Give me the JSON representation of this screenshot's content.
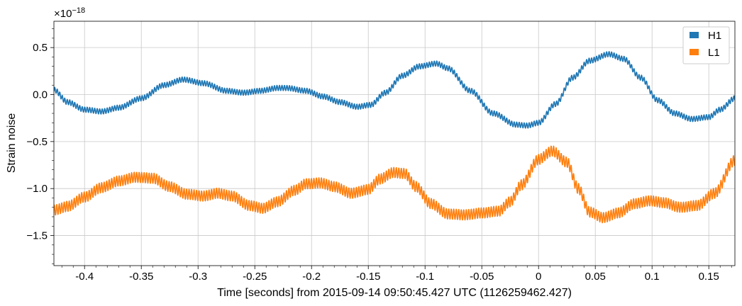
{
  "chart_data": {
    "type": "line",
    "title": "",
    "xlabel": "Time [seconds] from 2015-09-14 09:50:45.427 UTC (1126259462.427)",
    "ylabel": "Strain noise",
    "y_offset_label": "×10",
    "y_offset_exponent": "−18",
    "xlim": [
      -0.427,
      0.173
    ],
    "ylim": [
      -1.82,
      0.78
    ],
    "x_ticks": [
      -0.4,
      -0.35,
      -0.3,
      -0.25,
      -0.2,
      -0.15,
      -0.1,
      -0.05,
      0,
      0.05,
      0.1,
      0.15
    ],
    "x_tick_labels": [
      "-0.4",
      "-0.35",
      "-0.3",
      "-0.25",
      "-0.2",
      "-0.15",
      "-0.1",
      "-0.05",
      "0",
      "0.05",
      "0.1",
      "0.15"
    ],
    "y_ticks": [
      0.5,
      0.0,
      -0.5,
      -1.0,
      -1.5
    ],
    "y_tick_labels": [
      "0.5",
      "0.0",
      "−0.5",
      "−1.0",
      "−1.5"
    ],
    "grid": true,
    "legend_position": "top-right",
    "series": [
      {
        "name": "H1",
        "color": "#1f77b4",
        "ripple_amplitude": 0.028,
        "x": [
          -0.427,
          -0.415,
          -0.4,
          -0.385,
          -0.37,
          -0.35,
          -0.33,
          -0.313,
          -0.295,
          -0.275,
          -0.26,
          -0.245,
          -0.23,
          -0.222,
          -0.205,
          -0.19,
          -0.175,
          -0.16,
          -0.148,
          -0.135,
          -0.12,
          -0.105,
          -0.09,
          -0.08,
          -0.06,
          -0.04,
          -0.02,
          -0.01,
          0.0,
          0.015,
          0.03,
          0.045,
          0.062,
          0.075,
          0.09,
          0.105,
          0.12,
          0.135,
          0.15,
          0.16,
          0.173
        ],
        "values": [
          0.05,
          -0.08,
          -0.16,
          -0.18,
          -0.14,
          -0.04,
          0.1,
          0.16,
          0.12,
          0.04,
          0.02,
          0.04,
          0.07,
          0.07,
          0.04,
          -0.02,
          -0.08,
          -0.13,
          -0.11,
          0.02,
          0.2,
          0.3,
          0.33,
          0.28,
          0.04,
          -0.2,
          -0.32,
          -0.33,
          -0.3,
          -0.1,
          0.18,
          0.36,
          0.43,
          0.38,
          0.18,
          -0.06,
          -0.2,
          -0.26,
          -0.24,
          -0.16,
          -0.04
        ]
      },
      {
        "name": "L1",
        "color": "#ff7f0e",
        "ripple_amplitude": 0.055,
        "x": [
          -0.427,
          -0.415,
          -0.4,
          -0.385,
          -0.37,
          -0.355,
          -0.34,
          -0.325,
          -0.31,
          -0.295,
          -0.283,
          -0.27,
          -0.255,
          -0.243,
          -0.23,
          -0.215,
          -0.205,
          -0.192,
          -0.18,
          -0.165,
          -0.15,
          -0.14,
          -0.128,
          -0.118,
          -0.108,
          -0.095,
          -0.08,
          -0.065,
          -0.05,
          -0.035,
          -0.025,
          -0.015,
          0.0,
          0.012,
          0.025,
          0.035,
          0.045,
          0.057,
          0.07,
          0.085,
          0.098,
          0.11,
          0.125,
          0.14,
          0.155,
          0.173
        ],
        "values": [
          -1.23,
          -1.19,
          -1.09,
          -0.99,
          -0.92,
          -0.88,
          -0.89,
          -0.98,
          -1.06,
          -1.08,
          -1.05,
          -1.08,
          -1.18,
          -1.21,
          -1.14,
          -1.02,
          -0.95,
          -0.94,
          -0.98,
          -1.05,
          -1.01,
          -0.9,
          -0.83,
          -0.84,
          -0.98,
          -1.16,
          -1.27,
          -1.28,
          -1.26,
          -1.24,
          -1.14,
          -0.96,
          -0.69,
          -0.6,
          -0.72,
          -1.0,
          -1.25,
          -1.31,
          -1.26,
          -1.16,
          -1.13,
          -1.15,
          -1.2,
          -1.18,
          -1.05,
          -0.7
        ]
      }
    ]
  }
}
